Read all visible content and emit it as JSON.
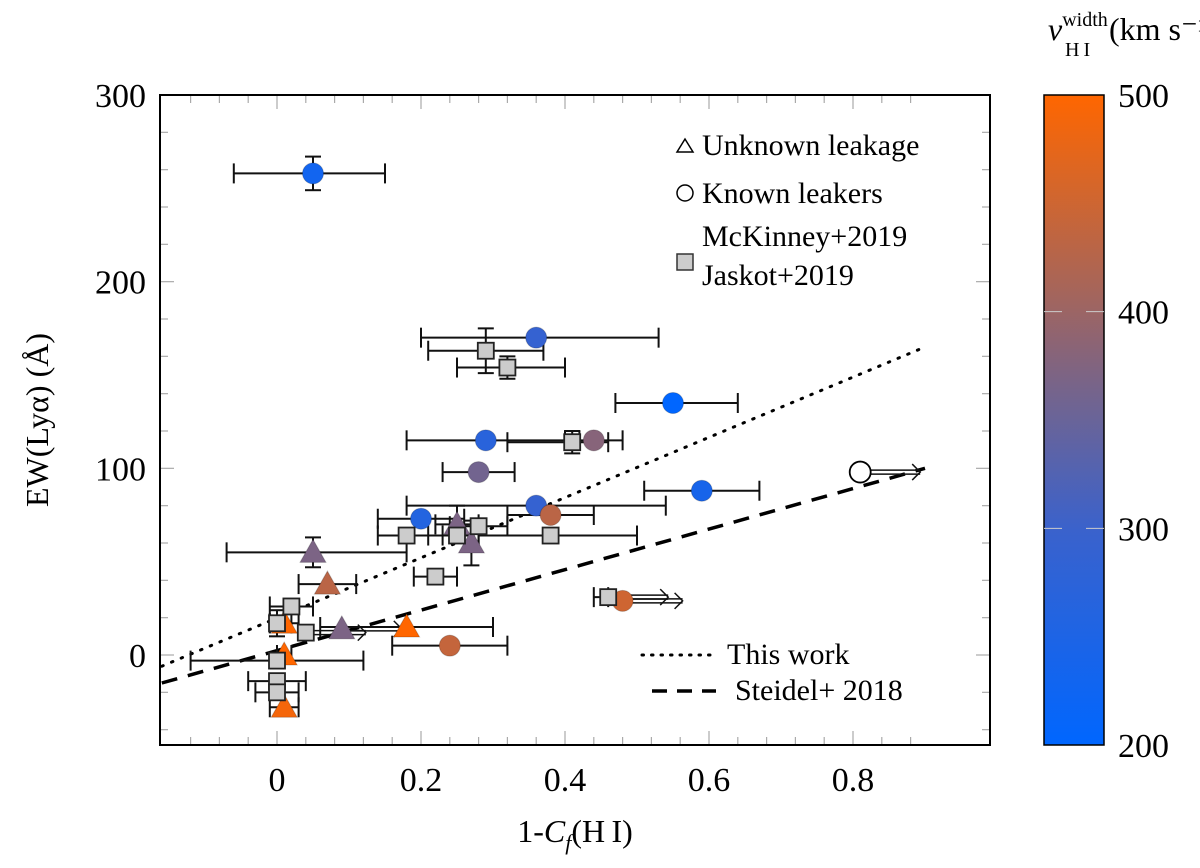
{
  "chart_data": {
    "type": "scatter",
    "title": "",
    "xlabel": "1-C_f(H I)",
    "xlabel_parts": {
      "prefix": "1-",
      "var": "C",
      "sub": "f",
      "suffix": "(H I)"
    },
    "ylabel": "EW(Lyα) (Å)",
    "xlim": [
      -0.16,
      0.9
    ],
    "ylim": [
      -50,
      300
    ],
    "xticks": [
      0,
      0.2,
      0.4,
      0.6,
      0.8
    ],
    "xtick_labels": [
      "0",
      "0.2",
      "0.4",
      "0.6",
      "0.8"
    ],
    "yticks": [
      0,
      100,
      200,
      300
    ],
    "ytick_labels": [
      "0",
      "100",
      "200",
      "300"
    ],
    "x_minor_step": 0.04,
    "y_minor_step": 20,
    "grid": false,
    "colorbar": {
      "label_main": "v",
      "label_sup": "width",
      "label_sub": "H I",
      "label_units": "(km s⁻¹)",
      "range": [
        200,
        500
      ],
      "ticks": [
        200,
        300,
        400,
        500
      ],
      "tick_labels": [
        "200",
        "300",
        "400",
        "500"
      ],
      "color_low": "#0066ff",
      "color_high": "#ff6600"
    },
    "legend": {
      "placement": "top-right",
      "markers": [
        {
          "label": "Unknown leakage",
          "marker": "triangle-open"
        },
        {
          "label": "Known leakers",
          "marker": "circle-open"
        },
        {
          "label": "McKinney+2019",
          "marker": "square-gray"
        },
        {
          "label": "Jaskot+2019",
          "marker": "square-gray"
        }
      ],
      "lines_placement": "bottom-right",
      "lines": [
        {
          "label": "This work",
          "style": "dotted"
        },
        {
          "label": "Steidel+ 2018",
          "style": "dashed"
        }
      ]
    },
    "fit_lines": [
      {
        "name": "This work",
        "style": "dotted",
        "x": [
          -0.16,
          0.9
        ],
        "y": [
          -6,
          165
        ]
      },
      {
        "name": "Steidel+ 2018",
        "style": "dashed",
        "x": [
          -0.16,
          0.9
        ],
        "y": [
          -15,
          100
        ]
      }
    ],
    "series": [
      {
        "name": "Known leakers",
        "marker": "circle",
        "points": [
          {
            "x": 0.05,
            "y": 258,
            "xerr": [
              0.11,
              0.1
            ],
            "yerr": [
              9,
              9
            ],
            "v": 230
          },
          {
            "x": 0.36,
            "y": 170,
            "xerr": [
              0.16,
              0.17
            ],
            "v": 290
          },
          {
            "x": 0.55,
            "y": 135,
            "xerr": [
              0.08,
              0.09
            ],
            "v": 200
          },
          {
            "x": 0.29,
            "y": 115,
            "xerr": [
              0.11,
              0.13
            ],
            "v": 270
          },
          {
            "x": 0.44,
            "y": 115,
            "xerr": [
              0.04,
              0.04
            ],
            "yerr": [
              2,
              2
            ],
            "v": 380
          },
          {
            "x": 0.28,
            "y": 98,
            "xerr": [
              0.05,
              0.05
            ],
            "v": 360
          },
          {
            "x": 0.59,
            "y": 88,
            "xerr": [
              0.08,
              0.08
            ],
            "v": 240
          },
          {
            "x": 0.81,
            "y": 98,
            "xerr": [
              0,
              0
            ],
            "lower_limit_x": true,
            "open": true
          },
          {
            "x": 0.36,
            "y": 80,
            "xerr": [
              0.18,
              0.18
            ],
            "v": 290
          },
          {
            "x": 0.2,
            "y": 73,
            "xerr": [
              0.06,
              0.06
            ],
            "v": 260
          },
          {
            "x": 0.38,
            "y": 75,
            "xerr": [
              0.06,
              0.06
            ],
            "v": 430
          },
          {
            "x": 0.48,
            "y": 29,
            "xerr": [
              0,
              0
            ],
            "lower_limit_x": true,
            "v": 450
          },
          {
            "x": 0.24,
            "y": 5,
            "xerr": [
              0.08,
              0.08
            ],
            "v": 440
          }
        ]
      },
      {
        "name": "Unknown leakage",
        "marker": "triangle",
        "points": [
          {
            "x": 0.05,
            "y": 55,
            "xerr": [
              0.12,
              0.13
            ],
            "yerr": [
              8,
              8
            ],
            "v": 370
          },
          {
            "x": 0.07,
            "y": 38,
            "xerr": [
              0.04,
              0.04
            ],
            "v": 430
          },
          {
            "x": 0.25,
            "y": 70,
            "xerr": [
              0.03,
              0.03
            ],
            "yerr": [
              10,
              10
            ],
            "v": 370
          },
          {
            "x": 0.27,
            "y": 60,
            "xerr": [
              0.01,
              0.01
            ],
            "yerr": [
              12,
              12
            ],
            "v": 370
          },
          {
            "x": 0.01,
            "y": 17,
            "xerr": [
              0.02,
              0.02
            ],
            "v": 500
          },
          {
            "x": 0.09,
            "y": 14,
            "xerr": [
              0.0,
              0.0
            ],
            "lower_limit_x": true,
            "v": 370
          },
          {
            "x": 0.18,
            "y": 15,
            "xerr": [
              0.12,
              0.12
            ],
            "v": 500
          },
          {
            "x": 0.01,
            "y": 0,
            "xerr": [
              0.01,
              0.01
            ],
            "v": 500
          },
          {
            "x": 0.01,
            "y": -28,
            "xerr": [
              0.02,
              0.02
            ],
            "v": 490
          }
        ]
      },
      {
        "name": "McKinney+2019 / Jaskot+2019",
        "marker": "square",
        "color": "#cccccc",
        "points": [
          {
            "x": 0.29,
            "y": 163,
            "xerr": [
              0.08,
              0.08
            ],
            "yerr": [
              12,
              12
            ]
          },
          {
            "x": 0.32,
            "y": 154,
            "xerr": [
              0.07,
              0.08
            ],
            "yerr": [
              6,
              6
            ]
          },
          {
            "x": 0.41,
            "y": 114,
            "xerr": [
              0.09,
              0.05
            ],
            "yerr": [
              6,
              6
            ]
          },
          {
            "x": 0.28,
            "y": 69,
            "xerr": [
              0.04,
              0.04
            ],
            "yerr": [
              3,
              3
            ]
          },
          {
            "x": 0.25,
            "y": 64,
            "xerr": [
              0.04,
              0.02
            ]
          },
          {
            "x": 0.18,
            "y": 64,
            "xerr": [
              0.04,
              0.05
            ]
          },
          {
            "x": 0.38,
            "y": 64,
            "xerr": [
              0.1,
              0.12
            ]
          },
          {
            "x": 0.22,
            "y": 42,
            "xerr": [
              0.03,
              0.03
            ]
          },
          {
            "x": 0.46,
            "y": 31,
            "xerr": [
              0.02,
              0.0
            ],
            "lower_limit_x": true
          },
          {
            "x": 0.02,
            "y": 26,
            "xerr": [
              0.03,
              0.03
            ]
          },
          {
            "x": 0.0,
            "y": 17,
            "xerr": [
              0.01,
              0.02
            ],
            "yerr": [
              7,
              7
            ]
          },
          {
            "x": 0.04,
            "y": 12,
            "xerr": [
              0.0,
              0.0
            ],
            "lower_limit_x": true
          },
          {
            "x": 0.0,
            "y": -3,
            "xerr": [
              0.12,
              0.12
            ]
          },
          {
            "x": 0.0,
            "y": -14,
            "xerr": [
              0.04,
              0.04
            ]
          },
          {
            "x": 0.0,
            "y": -20,
            "xerr": [
              0.03,
              0.03
            ]
          }
        ]
      }
    ]
  }
}
